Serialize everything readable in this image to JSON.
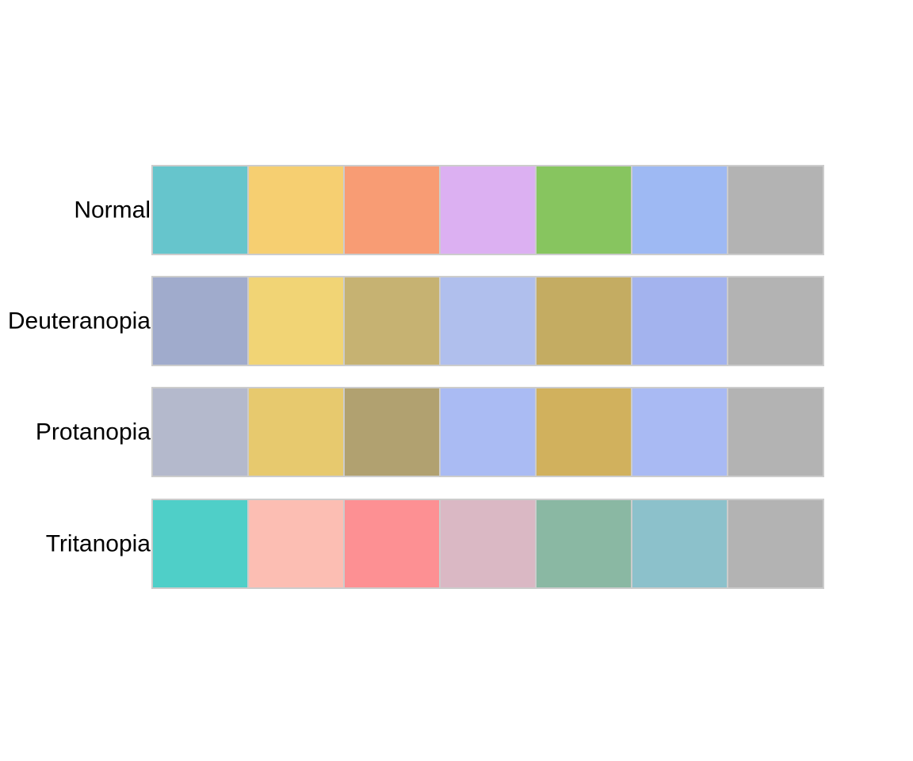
{
  "chart_data": {
    "type": "heatmap",
    "title": "",
    "xlabel": "",
    "ylabel": "",
    "columns": 7,
    "rows": [
      {
        "label": "Normal",
        "colors": [
          "#66c5cc",
          "#f6cf71",
          "#f89c74",
          "#dcb0f2",
          "#87c55f",
          "#9eb9f3",
          "#b3b3b3"
        ]
      },
      {
        "label": "Deuteranopia",
        "colors": [
          "#a0abcc",
          "#f1d475",
          "#c6b272",
          "#b0bfed",
          "#c4ac62",
          "#a3b3ee",
          "#b3b3b3"
        ]
      },
      {
        "label": "Protanopia",
        "colors": [
          "#b4b9cc",
          "#e7c96e",
          "#b1a170",
          "#aabbf3",
          "#d1b15d",
          "#a9baf3",
          "#b3b3b3"
        ]
      },
      {
        "label": "Tritanopia",
        "colors": [
          "#4fcfc8",
          "#fcbeb3",
          "#fd9093",
          "#dab8c4",
          "#8ab8a3",
          "#8cc1cb",
          "#b3b3b3"
        ]
      }
    ]
  }
}
